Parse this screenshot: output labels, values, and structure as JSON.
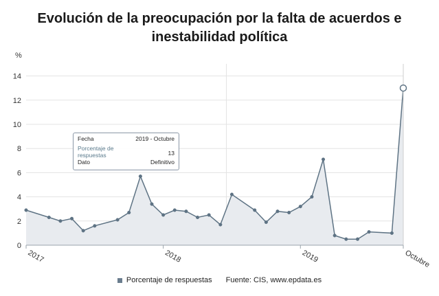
{
  "title_line1": "Evolución de la preocupación por la falta de acuerdos e",
  "title_line2": "inestabilidad política",
  "colors": {
    "line": "#5e7384",
    "area": "#e8ebef",
    "marker_fill": "#ffffff",
    "grid": "#e3e3e3"
  },
  "chart_data": {
    "type": "area",
    "y_unit": "%",
    "ylim": [
      0,
      15
    ],
    "yticks": [
      0,
      2,
      4,
      6,
      8,
      10,
      12,
      14
    ],
    "x_tick_labels": [
      "2017",
      "2018",
      "2019",
      "Octubre"
    ],
    "grid": true,
    "series": [
      {
        "name": "Porcentaje de respuestas",
        "values": [
          2.9,
          2.3,
          2.0,
          2.2,
          1.2,
          1.6,
          2.1,
          2.7,
          5.7,
          3.4,
          2.5,
          2.9,
          2.8,
          2.3,
          2.5,
          1.7,
          4.2,
          2.9,
          1.9,
          2.8,
          2.7,
          3.2,
          4.0,
          7.1,
          0.8,
          0.5,
          0.5,
          1.1,
          1.0,
          13.0
        ],
        "x_months": [
          "2017-01",
          "2017-03",
          "2017-04",
          "2017-05",
          "2017-06",
          "2017-07",
          "2017-09",
          "2017-10",
          "2017-11",
          "2017-12",
          "2018-01",
          "2018-02",
          "2018-03",
          "2018-04",
          "2018-05",
          "2018-06",
          "2018-07",
          "2018-09",
          "2018-10",
          "2018-11",
          "2018-12",
          "2019-01",
          "2019-02",
          "2019-03",
          "2019-04",
          "2019-05",
          "2019-06",
          "2019-07",
          "2019-09",
          "2019-10"
        ]
      }
    ]
  },
  "tooltip": {
    "fecha_label": "Fecha",
    "fecha_value": "2019 - Octubre",
    "porcentaje_label": "Porcentaje de respuestas",
    "porcentaje_value": "13",
    "dato_label": "Dato",
    "dato_value": "Definitivo"
  },
  "legend_label": "Porcentaje de respuestas",
  "source": "Fuente: CIS, www.epdata.es"
}
